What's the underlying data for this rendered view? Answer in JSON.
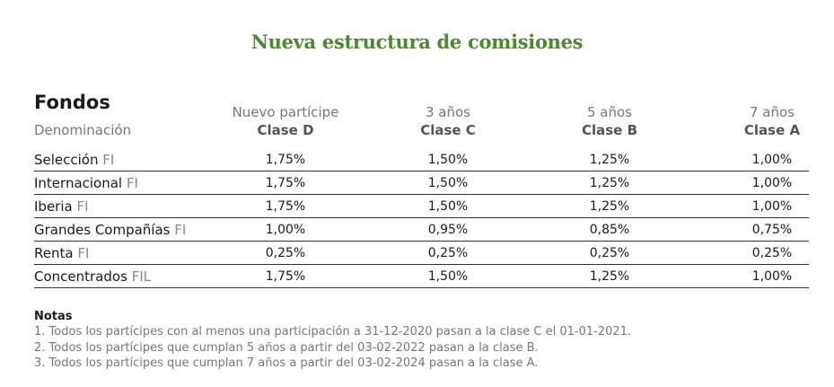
{
  "title": "Nueva estructura de comisiones",
  "table": {
    "header": {
      "fondos": "Fondos",
      "denominacion": "Denominación",
      "columns": [
        {
          "sub": "Nuevo partícipe",
          "clase": "Clase D"
        },
        {
          "sub": "3 años",
          "clase": "Clase C"
        },
        {
          "sub": "5 años",
          "clase": "Clase B"
        },
        {
          "sub": "7 años",
          "clase": "Clase A"
        }
      ]
    },
    "rows": [
      {
        "name": "Selección",
        "suffix": "FI",
        "values": [
          "1,75%",
          "1,50%",
          "1,25%",
          "1,00%"
        ]
      },
      {
        "name": "Internacional",
        "suffix": "FI",
        "values": [
          "1,75%",
          "1,50%",
          "1,25%",
          "1,00%"
        ]
      },
      {
        "name": "Iberia",
        "suffix": "FI",
        "values": [
          "1,75%",
          "1,50%",
          "1,25%",
          "1,00%"
        ]
      },
      {
        "name": "Grandes Compañías",
        "suffix": "FI",
        "values": [
          "1,00%",
          "0,95%",
          "0,85%",
          "0,75%"
        ]
      },
      {
        "name": "Renta",
        "suffix": "FI",
        "values": [
          "0,25%",
          "0,25%",
          "0,25%",
          "0,25%"
        ]
      },
      {
        "name": "Concentrados",
        "suffix": "FIL",
        "values": [
          "1,75%",
          "1,50%",
          "1,25%",
          "1,00%"
        ]
      }
    ]
  },
  "notes": {
    "title": "Notas",
    "lines": [
      "1. Todos los partícipes con al menos una participación a 31-12-2020 pasan a la clase C el 01-01-2021.",
      "2. Todos los partícipes que cumplan 5 años a partir del 03-02-2022 pasan a la clase B.",
      "3. Todos los partícipes que cumplan 7 años a partir del 03-02-2024 pasan a la clase A."
    ]
  },
  "colors": {
    "title": "#4a8a2a",
    "text": "#1a1a1a",
    "muted": "#777777",
    "rule": "#333333"
  }
}
